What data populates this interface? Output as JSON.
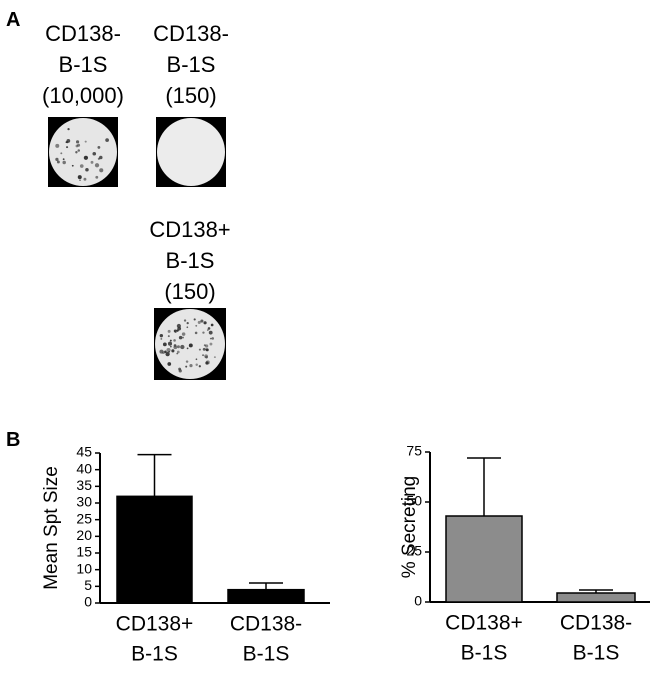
{
  "panel_a": {
    "label": "A",
    "wells": [
      {
        "caption": [
          "CD138-",
          "B-1S",
          "(10,000)"
        ]
      },
      {
        "caption": [
          "CD138-",
          "B-1S",
          "(150)"
        ]
      },
      {
        "caption": [
          "CD138+",
          "B-1S",
          "(150)"
        ]
      }
    ]
  },
  "panel_b": {
    "label": "B"
  },
  "chart_data": [
    {
      "type": "bar",
      "y_label": "Mean Spt Size",
      "categories": [
        [
          "CD138+",
          "B-1S"
        ],
        [
          "CD138-",
          "B-1S"
        ]
      ],
      "values": [
        32,
        4
      ],
      "errors": [
        12.5,
        2
      ],
      "color": "#000000",
      "ylim": [
        0,
        45
      ],
      "yticks": [
        0,
        5,
        10,
        15,
        20,
        25,
        30,
        35,
        40,
        45
      ]
    },
    {
      "type": "bar",
      "y_label": "% Secreting",
      "categories": [
        [
          "CD138+",
          "B-1S"
        ],
        [
          "CD138-",
          "B-1S"
        ]
      ],
      "values": [
        43,
        4.5
      ],
      "errors": [
        29,
        1.5
      ],
      "color": "#8c8c8c",
      "ylim": [
        0,
        75
      ],
      "yticks": [
        0,
        25,
        50,
        75
      ]
    }
  ]
}
